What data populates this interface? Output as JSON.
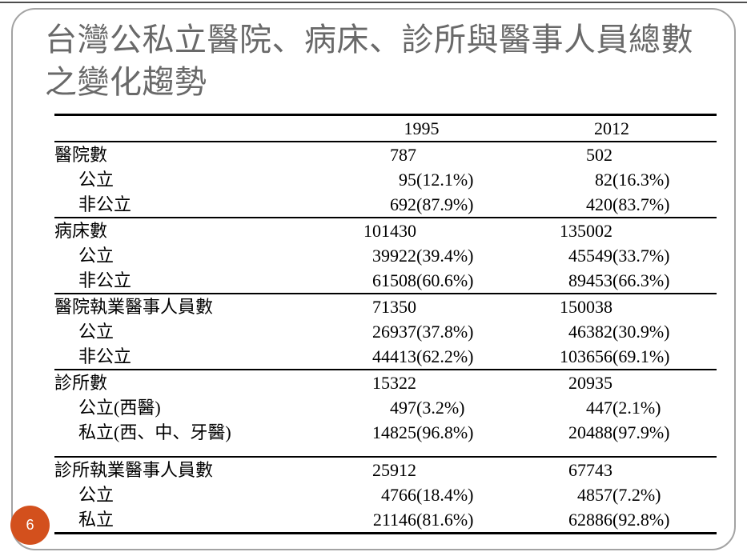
{
  "slide": {
    "title": "台灣公私立醫院、病床、診所與醫事人員總數之變化趨勢",
    "page_number": "6"
  },
  "colors": {
    "accent_circle": "#d3501d",
    "title_text": "#696969",
    "frame_border": "#a3a3a3",
    "table_text": "#000000"
  },
  "table": {
    "year_headers": [
      "1995",
      "2012"
    ],
    "rows": [
      {
        "label": "醫院數",
        "v1995": "787",
        "p1995": "",
        "v2012": "502",
        "p2012": ""
      },
      {
        "label": "公立",
        "v1995": "95",
        "p1995": "(12.1%)",
        "v2012": "82",
        "p2012": "(16.3%)"
      },
      {
        "label": "非公立",
        "v1995": "692",
        "p1995": "(87.9%)",
        "v2012": "420",
        "p2012": "(83.7%)"
      },
      {
        "label": "病床數",
        "v1995": "101430",
        "p1995": "",
        "v2012": "135002",
        "p2012": ""
      },
      {
        "label": "公立",
        "v1995": "39922",
        "p1995": "(39.4%)",
        "v2012": "45549",
        "p2012": "(33.7%)"
      },
      {
        "label": "非公立",
        "v1995": "61508",
        "p1995": "(60.6%)",
        "v2012": "89453",
        "p2012": "(66.3%)"
      },
      {
        "label": "醫院執業醫事人員數",
        "v1995": "71350",
        "p1995": "",
        "v2012": "150038",
        "p2012": ""
      },
      {
        "label": "公立",
        "v1995": "26937",
        "p1995": "(37.8%)",
        "v2012": "46382",
        "p2012": "(30.9%)"
      },
      {
        "label": "非公立",
        "v1995": "44413",
        "p1995": "(62.2%)",
        "v2012": "103656",
        "p2012": "(69.1%)"
      },
      {
        "label": "診所數",
        "v1995": "15322",
        "p1995": "",
        "v2012": "20935",
        "p2012": ""
      },
      {
        "label": "公立(西醫)",
        "v1995": "497",
        "p1995": "(3.2%)",
        "v2012": "447",
        "p2012": "(2.1%)"
      },
      {
        "label": "私立(西、中、牙醫)",
        "v1995": "14825",
        "p1995": "(96.8%)",
        "v2012": "20488",
        "p2012": "(97.9%)"
      },
      {
        "label": "診所執業醫事人員數",
        "v1995": "25912",
        "p1995": "",
        "v2012": "67743",
        "p2012": ""
      },
      {
        "label": "公立",
        "v1995": "4766",
        "p1995": "(18.4%)",
        "v2012": "4857",
        "p2012": "(7.2%)"
      },
      {
        "label": "私立",
        "v1995": "21146",
        "p1995": "(81.6%)",
        "v2012": "62886",
        "p2012": "(92.8%)"
      }
    ]
  }
}
